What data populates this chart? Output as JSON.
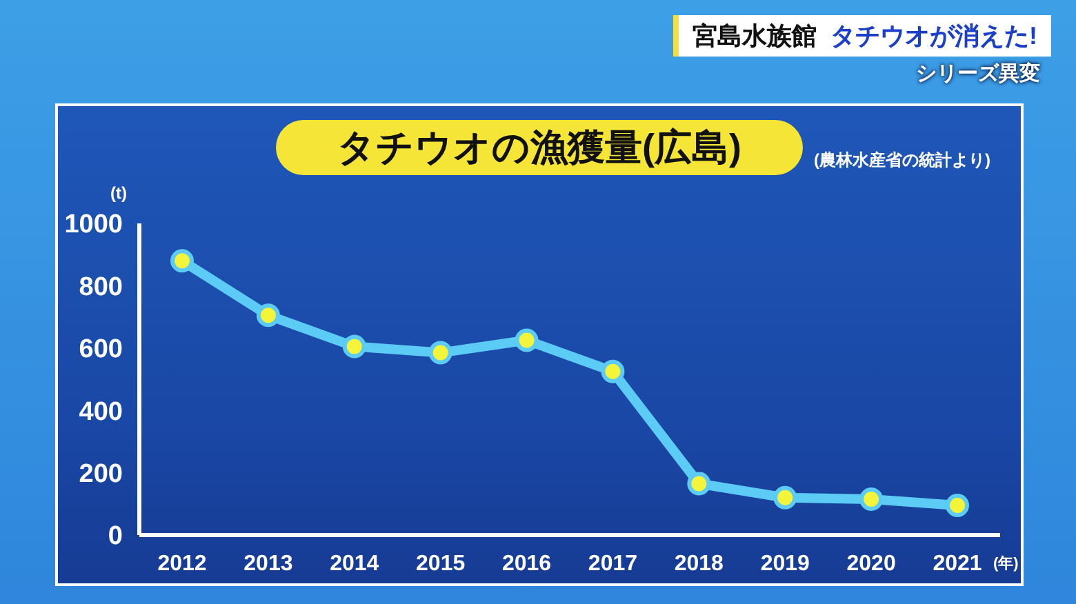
{
  "chart_data": {
    "type": "line",
    "title": "タチウオの漁獲量(広島)",
    "xlabel": "(年)",
    "ylabel": "(t)",
    "categories": [
      "2012",
      "2013",
      "2014",
      "2015",
      "2016",
      "2017",
      "2018",
      "2019",
      "2020",
      "2021"
    ],
    "series": [
      {
        "color": "#5ccbf5",
        "values": [
          880,
          705,
          605,
          585,
          625,
          525,
          165,
          120,
          115,
          95
        ]
      }
    ],
    "ylim": [
      0,
      1000
    ],
    "yticks": [
      0,
      200,
      400,
      600,
      800,
      1000
    ],
    "grid": false,
    "legend": false,
    "marker": "circle",
    "line_style": "solid",
    "annotations": [
      "(農林水産省の統計より)",
      "宮島水族館",
      "タチウオが消えた!",
      "シリーズ異変"
    ]
  }
}
